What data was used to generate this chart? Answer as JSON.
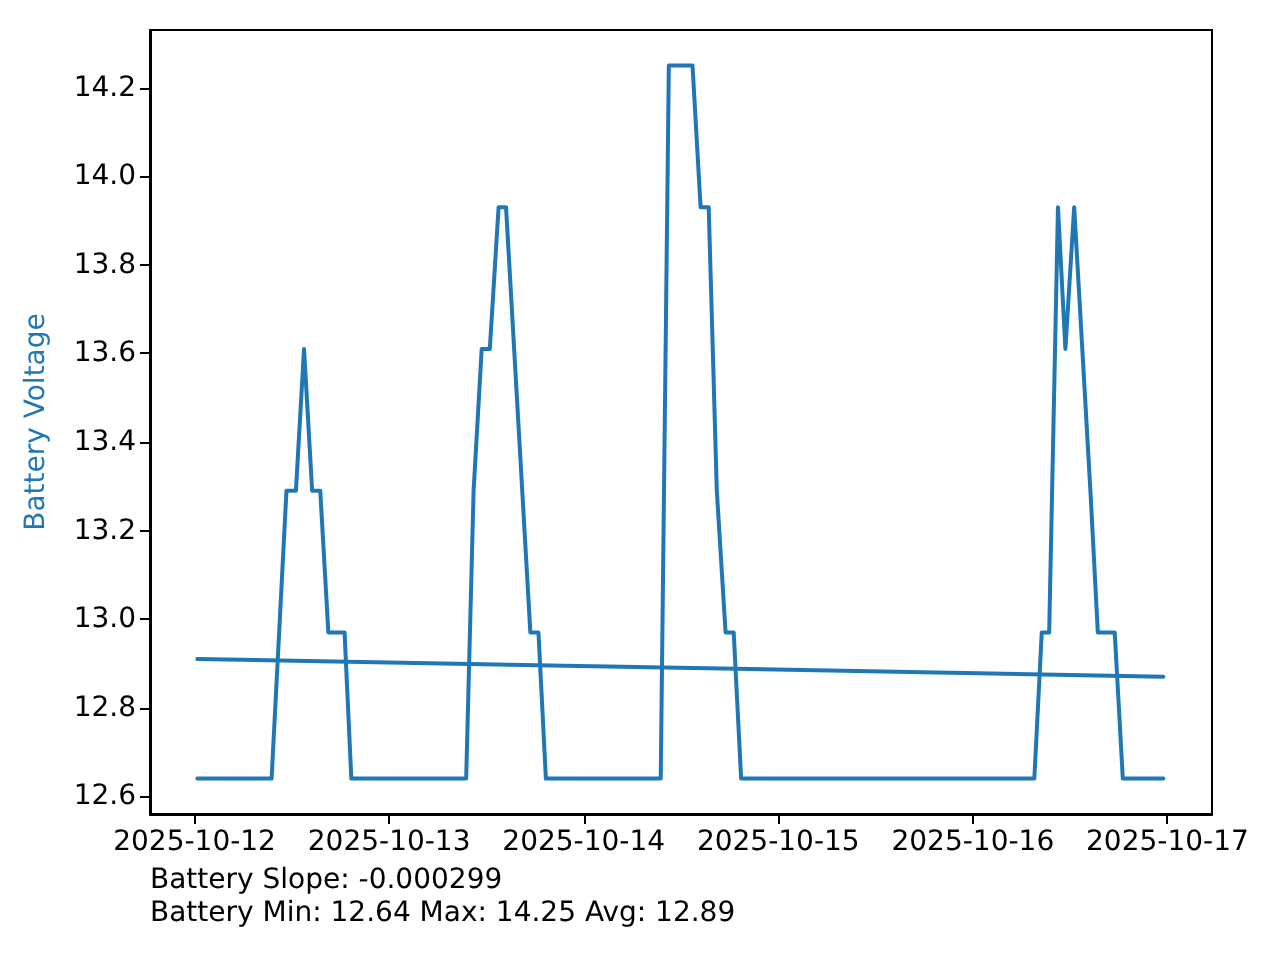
{
  "chart_data": {
    "type": "line",
    "ylabel": "Battery Voltage",
    "annotations": [
      "Battery Slope: -0.000299",
      "Battery Min: 12.64 Max: 14.25 Avg: 12.89"
    ],
    "xlim": [
      "2025-10-11T18:30",
      "2025-10-17T05:30"
    ],
    "xticks": [
      "2025-10-12",
      "2025-10-13",
      "2025-10-14",
      "2025-10-15",
      "2025-10-16",
      "2025-10-17"
    ],
    "ylim": [
      12.56,
      14.33
    ],
    "yticks": [
      12.6,
      12.8,
      {
        "value": 13,
        "label": "13.0"
      },
      13.2,
      13.4,
      13.6,
      13.8,
      {
        "value": 14,
        "label": "14.0"
      },
      14.2
    ],
    "grid": false,
    "series": [
      {
        "color": "#1f77b4",
        "x": [
          "2025-10-12T00:20",
          "2025-10-12T09:30",
          "2025-10-12T11:20",
          "2025-10-12T12:30",
          "2025-10-12T13:30",
          "2025-10-12T14:30",
          "2025-10-12T15:30",
          "2025-10-12T16:30",
          "2025-10-12T18:30",
          "2025-10-12T19:20",
          "2025-10-13T09:30",
          "2025-10-13T10:25",
          "2025-10-13T11:25",
          "2025-10-13T12:25",
          "2025-10-13T13:30",
          "2025-10-13T14:25",
          "2025-10-13T15:25",
          "2025-10-13T16:25",
          "2025-10-13T17:25",
          "2025-10-13T18:25",
          "2025-10-13T19:20",
          "2025-10-14T09:30",
          "2025-10-14T10:30",
          "2025-10-14T13:25",
          "2025-10-14T14:25",
          "2025-10-14T15:25",
          "2025-10-14T16:25",
          "2025-10-14T17:30",
          "2025-10-14T18:30",
          "2025-10-14T19:25",
          "2025-10-16T07:35",
          "2025-10-16T08:30",
          "2025-10-16T09:25",
          "2025-10-16T10:30",
          "2025-10-16T11:25",
          "2025-10-16T12:30",
          "2025-10-16T13:30",
          "2025-10-16T14:30",
          "2025-10-16T15:25",
          "2025-10-16T17:30",
          "2025-10-16T18:30",
          "2025-10-16T23:30"
        ],
        "values": [
          12.64,
          12.64,
          13.29,
          13.29,
          13.61,
          13.29,
          13.29,
          12.97,
          12.97,
          12.64,
          12.64,
          13.29,
          13.61,
          13.61,
          13.93,
          13.93,
          13.61,
          13.29,
          12.97,
          12.97,
          12.64,
          12.64,
          14.25,
          14.25,
          13.93,
          13.93,
          13.29,
          12.97,
          12.97,
          12.64,
          12.64,
          12.97,
          12.97,
          13.93,
          13.61,
          13.93,
          13.61,
          13.29,
          12.97,
          12.97,
          12.64,
          12.64
        ]
      },
      {
        "type": "line",
        "color": "#1f77b4",
        "x": [
          "2025-10-12T00:20",
          "2025-10-16T23:30"
        ],
        "values": [
          12.91,
          12.87
        ]
      }
    ]
  }
}
